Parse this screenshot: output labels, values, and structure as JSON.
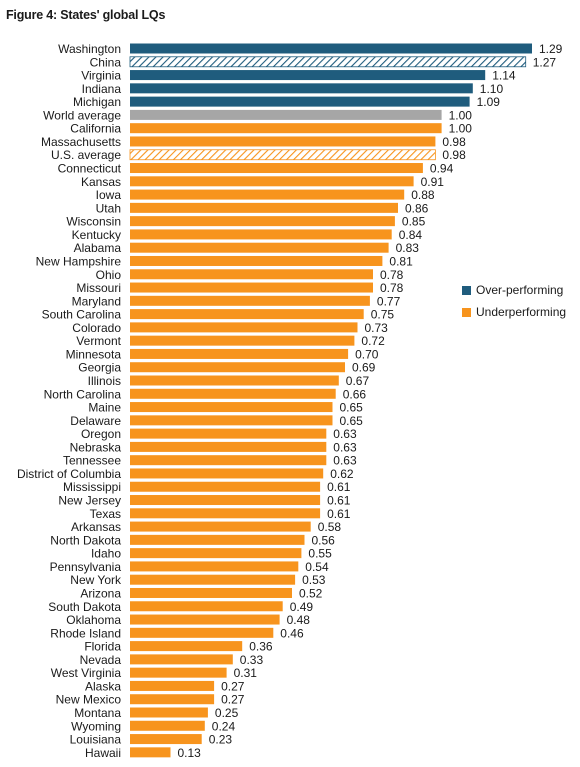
{
  "title": "Figure 4: States' global LQs",
  "colors": {
    "over": "#1f5c7d",
    "under": "#f7941d",
    "world": "#a6a6a6",
    "china_hatch": "#1f5c7d",
    "us_hatch": "#f7941d"
  },
  "legend": {
    "items": [
      {
        "label": "Over-performing",
        "color": "#1f5c7d"
      },
      {
        "label": "Underperforming",
        "color": "#f7941d"
      }
    ]
  },
  "chart_data": {
    "type": "bar",
    "orientation": "horizontal",
    "title": "Figure 4: States' global LQs",
    "xlim": [
      0,
      1.29
    ],
    "legend_position": "right",
    "grid": false,
    "categories": [
      "Washington",
      "China",
      "Virginia",
      "Indiana",
      "Michigan",
      "World average",
      "California",
      "Massachusetts",
      "U.S. average",
      "Connecticut",
      "Kansas",
      "Iowa",
      "Utah",
      "Wisconsin",
      "Kentucky",
      "Alabama",
      "New Hampshire",
      "Ohio",
      "Missouri",
      "Maryland",
      "South Carolina",
      "Colorado",
      "Vermont",
      "Minnesota",
      "Georgia",
      "Illinois",
      "North Carolina",
      "Maine",
      "Delaware",
      "Oregon",
      "Nebraska",
      "Tennessee",
      "District of Columbia",
      "Mississippi",
      "New Jersey",
      "Texas",
      "Arkansas",
      "North Dakota",
      "Idaho",
      "Pennsylvania",
      "New York",
      "Arizona",
      "South Dakota",
      "Oklahoma",
      "Rhode Island",
      "Florida",
      "Nevada",
      "West Virginia",
      "Alaska",
      "New Mexico",
      "Montana",
      "Wyoming",
      "Louisiana",
      "Hawaii"
    ],
    "values": [
      1.29,
      1.27,
      1.14,
      1.1,
      1.09,
      1.0,
      1.0,
      0.98,
      0.98,
      0.94,
      0.91,
      0.88,
      0.86,
      0.85,
      0.84,
      0.83,
      0.81,
      0.78,
      0.78,
      0.77,
      0.75,
      0.73,
      0.72,
      0.7,
      0.69,
      0.67,
      0.66,
      0.65,
      0.65,
      0.63,
      0.63,
      0.63,
      0.62,
      0.61,
      0.61,
      0.61,
      0.58,
      0.56,
      0.55,
      0.54,
      0.53,
      0.52,
      0.49,
      0.48,
      0.46,
      0.36,
      0.33,
      0.31,
      0.27,
      0.27,
      0.25,
      0.24,
      0.23,
      0.13
    ],
    "value_labels": [
      "1.29",
      "1.27",
      "1.14",
      "1.10",
      "1.09",
      "1.00",
      "1.00",
      "0.98",
      "0.98",
      "0.94",
      "0.91",
      "0.88",
      "0.86",
      "0.85",
      "0.84",
      "0.83",
      "0.81",
      "0.78",
      "0.78",
      "0.77",
      "0.75",
      "0.73",
      "0.72",
      "0.70",
      "0.69",
      "0.67",
      "0.66",
      "0.65",
      "0.65",
      "0.63",
      "0.63",
      "0.63",
      "0.62",
      "0.61",
      "0.61",
      "0.61",
      "0.58",
      "0.56",
      "0.55",
      "0.54",
      "0.53",
      "0.52",
      "0.49",
      "0.48",
      "0.46",
      "0.36",
      "0.33",
      "0.31",
      "0.27",
      "0.27",
      "0.25",
      "0.24",
      "0.23",
      "0.13"
    ],
    "groups": [
      "over",
      "china",
      "over",
      "over",
      "over",
      "world",
      "under",
      "under",
      "us",
      "under",
      "under",
      "under",
      "under",
      "under",
      "under",
      "under",
      "under",
      "under",
      "under",
      "under",
      "under",
      "under",
      "under",
      "under",
      "under",
      "under",
      "under",
      "under",
      "under",
      "under",
      "under",
      "under",
      "under",
      "under",
      "under",
      "under",
      "under",
      "under",
      "under",
      "under",
      "under",
      "under",
      "under",
      "under",
      "under",
      "under",
      "under",
      "under",
      "under",
      "under",
      "under",
      "under",
      "under",
      "under"
    ]
  }
}
